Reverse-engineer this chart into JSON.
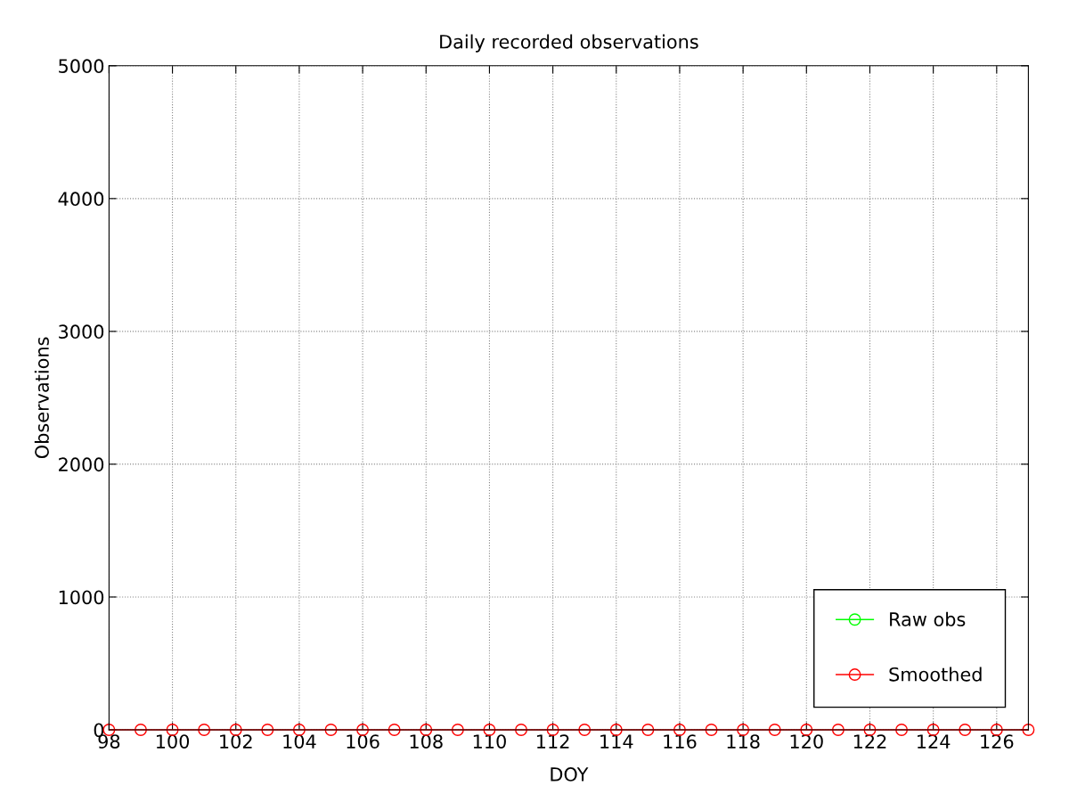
{
  "chart_data": {
    "type": "line",
    "title": "Daily recorded observations",
    "xlabel": "DOY",
    "ylabel": "Observations",
    "x": [
      98,
      99,
      100,
      101,
      102,
      103,
      104,
      105,
      106,
      107,
      108,
      109,
      110,
      111,
      112,
      113,
      114,
      115,
      116,
      117,
      118,
      119,
      120,
      121,
      122,
      123,
      124,
      125,
      126,
      127
    ],
    "series": [
      {
        "name": "Raw obs",
        "color": "#00ff00",
        "values": [
          null,
          null,
          null,
          null,
          null,
          null,
          null,
          null,
          null,
          null,
          null,
          null,
          null,
          null,
          null,
          null,
          null,
          null,
          null,
          null,
          null,
          null,
          null,
          null,
          null,
          null,
          null,
          null,
          null,
          null
        ]
      },
      {
        "name": "Smoothed",
        "color": "#ff0000",
        "values": [
          0,
          0,
          0,
          0,
          0,
          0,
          0,
          0,
          0,
          0,
          0,
          0,
          0,
          0,
          0,
          0,
          0,
          0,
          0,
          0,
          0,
          0,
          0,
          0,
          0,
          0,
          0,
          0,
          0,
          0
        ]
      }
    ],
    "xlim": [
      98,
      127
    ],
    "xticks": [
      98,
      100,
      102,
      104,
      106,
      108,
      110,
      112,
      114,
      116,
      118,
      120,
      122,
      124,
      126
    ],
    "ylim": [
      0,
      5000
    ],
    "yticks": [
      0,
      1000,
      2000,
      3000,
      4000,
      5000
    ],
    "grid": true,
    "legend": "bottom right",
    "marker": "circle",
    "line_style": "solid"
  }
}
